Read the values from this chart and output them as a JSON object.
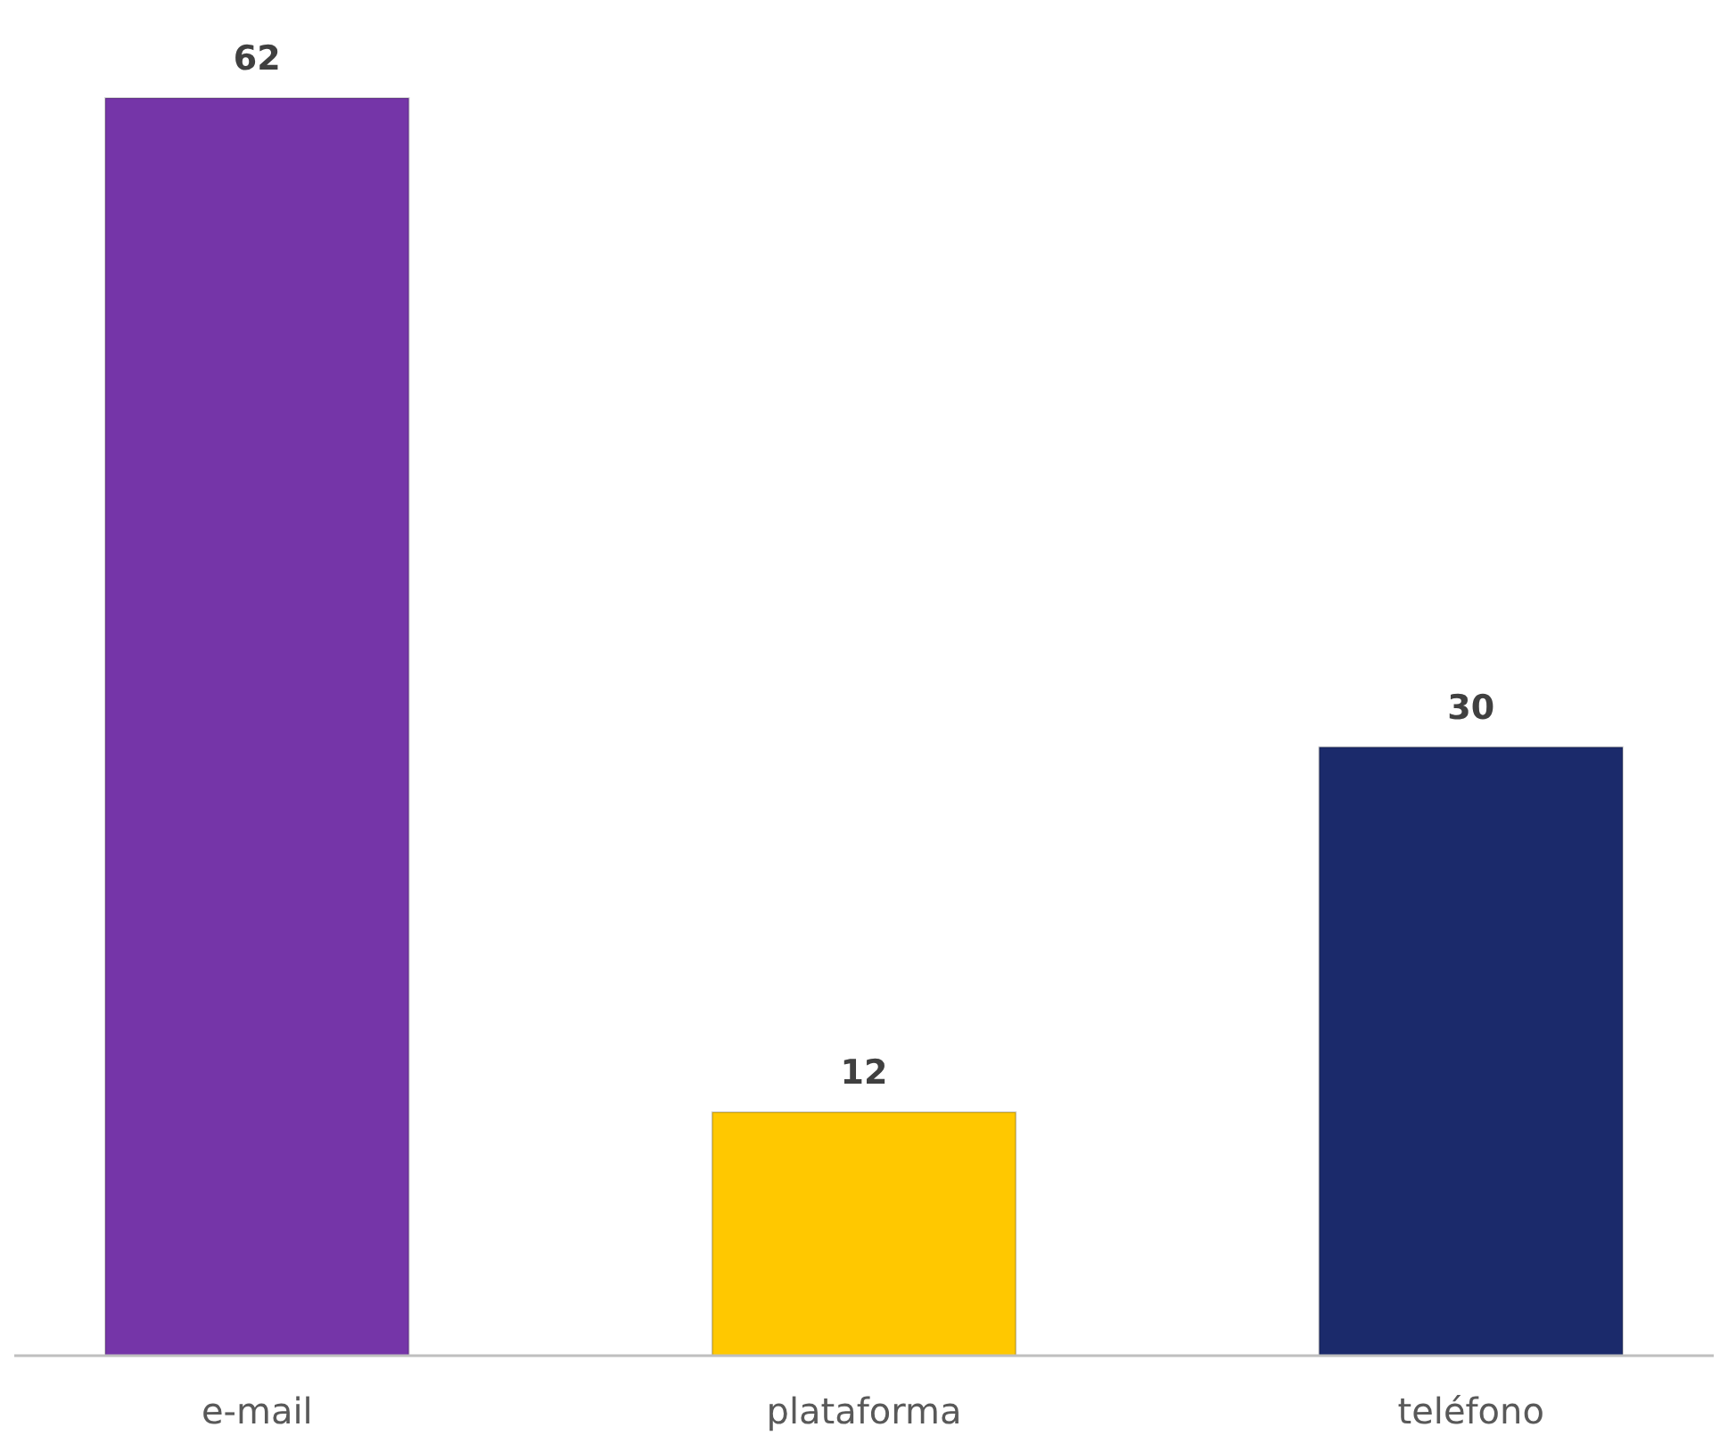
{
  "chart_data": {
    "type": "bar",
    "categories": [
      "e-mail",
      "plataforma",
      "teléfono"
    ],
    "values": [
      62,
      12,
      30
    ],
    "colors": [
      "#7535a8",
      "#ffc800",
      "#1b2a6b"
    ],
    "data_labels": true
  }
}
